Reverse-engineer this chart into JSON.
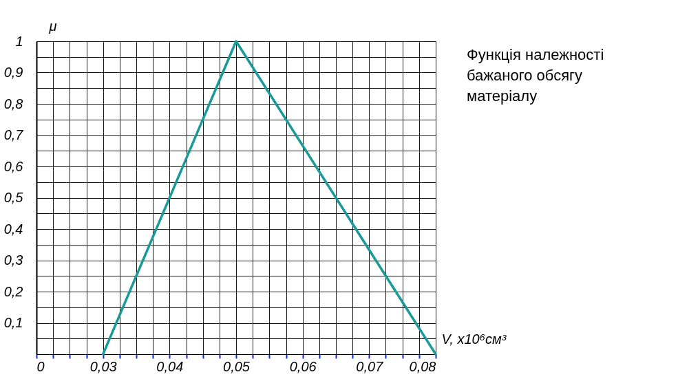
{
  "chart_data": {
    "type": "line",
    "xlabel": "V, x10⁶см³",
    "ylabel": "μ",
    "x": [
      0.03,
      0.05,
      0.08
    ],
    "series": [
      {
        "color": "#179a98",
        "values": [
          0,
          1,
          0
        ]
      }
    ],
    "xlim": [
      0.02,
      0.08
    ],
    "xticks": [
      {
        "value": 0.02,
        "label": "0"
      },
      {
        "value": 0.0225,
        "label": null
      },
      {
        "value": 0.025,
        "label": null
      },
      {
        "value": 0.0275,
        "label": null
      },
      {
        "value": 0.03,
        "label": "0,03"
      },
      {
        "value": 0.0325,
        "label": null
      },
      {
        "value": 0.035,
        "label": null
      },
      {
        "value": 0.0375,
        "label": null
      },
      {
        "value": 0.04,
        "label": "0,04"
      },
      {
        "value": 0.0425,
        "label": null
      },
      {
        "value": 0.045,
        "label": null
      },
      {
        "value": 0.0475,
        "label": null
      },
      {
        "value": 0.05,
        "label": "0,05"
      },
      {
        "value": 0.0525,
        "label": null
      },
      {
        "value": 0.055,
        "label": null
      },
      {
        "value": 0.0575,
        "label": null
      },
      {
        "value": 0.06,
        "label": "0,06"
      },
      {
        "value": 0.0625,
        "label": null
      },
      {
        "value": 0.065,
        "label": null
      },
      {
        "value": 0.0675,
        "label": null
      },
      {
        "value": 0.07,
        "label": "0,07"
      },
      {
        "value": 0.0725,
        "label": null
      },
      {
        "value": 0.075,
        "label": null
      },
      {
        "value": 0.0775,
        "label": null
      },
      {
        "value": 0.08,
        "label": "0,08"
      }
    ],
    "ylim": [
      0,
      1
    ],
    "yticks": [
      {
        "value": 0,
        "label": null
      },
      {
        "value": 0.05,
        "label": null
      },
      {
        "value": 0.1,
        "label": "0,1"
      },
      {
        "value": 0.15,
        "label": null
      },
      {
        "value": 0.2,
        "label": "0,2"
      },
      {
        "value": 0.25,
        "label": null
      },
      {
        "value": 0.3,
        "label": "0,3"
      },
      {
        "value": 0.35,
        "label": null
      },
      {
        "value": 0.4,
        "label": "0,4"
      },
      {
        "value": 0.45,
        "label": null
      },
      {
        "value": 0.5,
        "label": "0,5"
      },
      {
        "value": 0.55,
        "label": null
      },
      {
        "value": 0.6,
        "label": "0,6"
      },
      {
        "value": 0.65,
        "label": null
      },
      {
        "value": 0.7,
        "label": "0,7"
      },
      {
        "value": 0.75,
        "label": null
      },
      {
        "value": 0.8,
        "label": "0,8"
      },
      {
        "value": 0.85,
        "label": null
      },
      {
        "value": 0.9,
        "label": "0,9"
      },
      {
        "value": 0.95,
        "label": null
      },
      {
        "value": 1,
        "label": "1"
      }
    ],
    "grid": true,
    "marker": "none",
    "line_style": "solid",
    "annotations": [
      "Функція належності\nбажаного обсягу\nматеріалу"
    ]
  }
}
